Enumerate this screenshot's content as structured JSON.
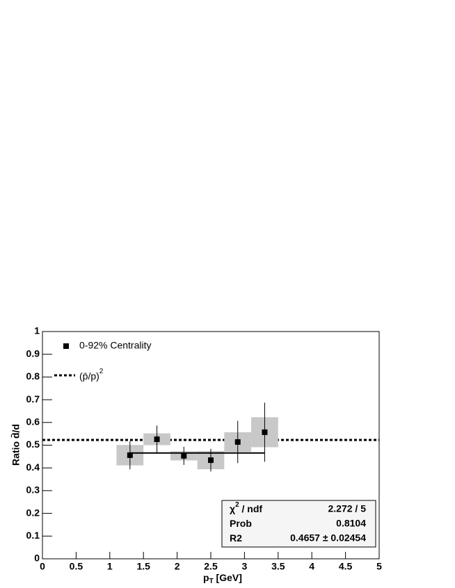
{
  "chart_data": {
    "type": "scatter",
    "ylabel": "Ratio d̄/d",
    "xlabel": {
      "main": "p",
      "sub": "T",
      "unit": " [GeV]"
    },
    "xlim": [
      0,
      5
    ],
    "ylim": [
      0,
      1
    ],
    "xticks": [
      0,
      0.5,
      1,
      1.5,
      2,
      2.5,
      3,
      3.5,
      4,
      4.5,
      5
    ],
    "yticks": [
      0,
      0.1,
      0.2,
      0.3,
      0.4,
      0.5,
      0.6,
      0.7,
      0.8,
      0.9,
      1
    ],
    "series": [
      {
        "name": "0-92% Centrality",
        "color": "#000000",
        "x": [
          1.3,
          1.7,
          2.1,
          2.5,
          2.9,
          3.3
        ],
        "values": [
          0.456,
          0.526,
          0.453,
          0.434,
          0.514,
          0.557
        ],
        "errors": [
          0.062,
          0.06,
          0.04,
          0.05,
          0.093,
          0.13
        ],
        "sys_errors": [
          0.045,
          0.026,
          0.02,
          0.04,
          0.043,
          0.066
        ],
        "sys_width": [
          0.4,
          0.4,
          0.4,
          0.4,
          0.4,
          0.4
        ],
        "sys_color": "#c8c8c8"
      }
    ],
    "fit": {
      "value": 0.4657,
      "xrange": [
        1.3,
        3.3
      ],
      "color": "#000000"
    },
    "reference": {
      "name": "(p̄/p)",
      "sup": "2",
      "value": 0.523
    },
    "stats": [
      {
        "label": "χ",
        "sup": "2",
        "label_rest": " / ndf",
        "value": "2.272 / 5"
      },
      {
        "label": "Prob",
        "value": "0.8104"
      },
      {
        "label": "R2",
        "value": "0.4657 ± 0.02454"
      }
    ]
  }
}
